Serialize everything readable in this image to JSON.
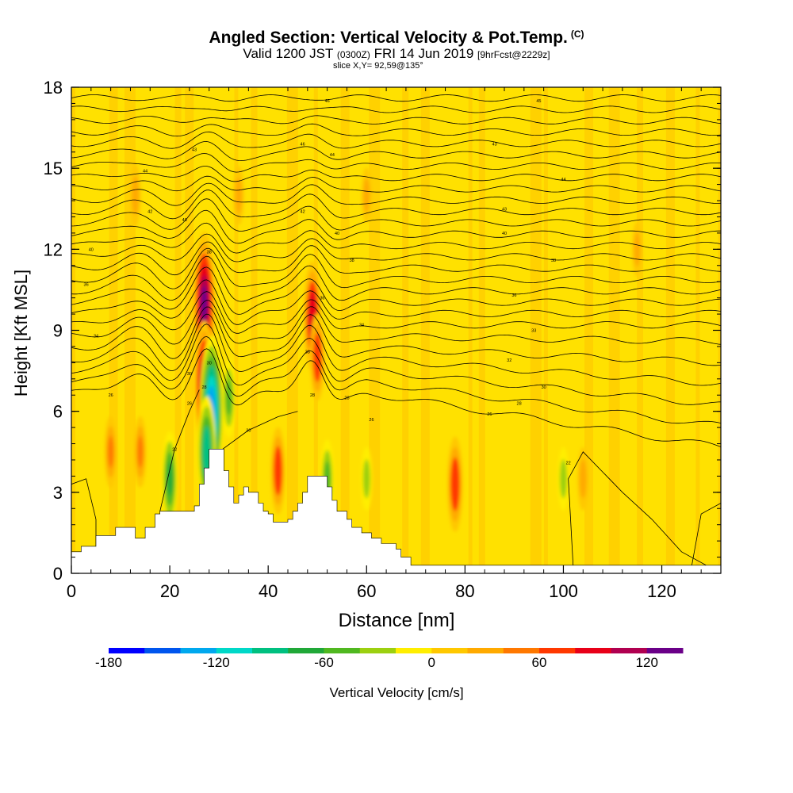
{
  "chart_data": {
    "type": "heatmap",
    "title": "Angled Section: Vertical Velocity & Pot.Temp.",
    "title_suffix": "(C)",
    "subtitle_main": "Valid 1200 JST",
    "subtitle_utc": "(0300Z)",
    "subtitle_date": "FRI 14 Jun 2019",
    "subtitle_fcst": "[9hrFcst@2229z]",
    "slice_label": "slice X,Y= 92,59@135°",
    "xlabel": "Distance [nm]",
    "ylabel": "Height [Kft MSL]",
    "xlim": [
      0,
      132
    ],
    "ylim": [
      0,
      18
    ],
    "x_ticks": [
      "0",
      "20",
      "40",
      "60",
      "80",
      "100",
      "120"
    ],
    "y_ticks": [
      "0",
      "3",
      "6",
      "9",
      "12",
      "15",
      "18"
    ],
    "colorbar": {
      "label": "Vertical Velocity [cm/s]",
      "tick_labels": [
        "-180",
        "-120",
        "-60",
        "0",
        "60",
        "120"
      ],
      "colors": [
        "#0000ff",
        "#0055ee",
        "#00a8ee",
        "#00d8c8",
        "#00c080",
        "#20a838",
        "#50b820",
        "#9cd010",
        "#ffee00",
        "#ffc800",
        "#ffaa00",
        "#ff7800",
        "#ff3800",
        "#e80018",
        "#b00050",
        "#6a0088"
      ]
    },
    "velocity_cores_cm_s": [
      {
        "x": 8,
        "y": 4.5,
        "value": 40
      },
      {
        "x": 14,
        "y": 4.5,
        "value": 40
      },
      {
        "x": 27,
        "y": 10,
        "value": 130
      },
      {
        "x": 27,
        "y": 7,
        "value": 110
      },
      {
        "x": 28.5,
        "y": 6,
        "value": -140
      },
      {
        "x": 27.5,
        "y": 4.5,
        "value": -90
      },
      {
        "x": 20,
        "y": 3.5,
        "value": -70
      },
      {
        "x": 32,
        "y": 6.5,
        "value": -50
      },
      {
        "x": 42,
        "y": 3.8,
        "value": 60
      },
      {
        "x": 49,
        "y": 9.5,
        "value": 90
      },
      {
        "x": 50,
        "y": 8,
        "value": 60
      },
      {
        "x": 52,
        "y": 3.5,
        "value": -50
      },
      {
        "x": 60,
        "y": 3.5,
        "value": -30
      },
      {
        "x": 78,
        "y": 3.3,
        "value": 70
      },
      {
        "x": 100,
        "y": 3.5,
        "value": -30
      },
      {
        "x": 104,
        "y": 3.5,
        "value": 30
      },
      {
        "x": 13,
        "y": 14,
        "value": 30
      },
      {
        "x": 34,
        "y": 14,
        "value": 25
      },
      {
        "x": 60,
        "y": 14,
        "value": 20
      },
      {
        "x": 115,
        "y": 12,
        "value": 20
      }
    ],
    "potential_temperature_contour_labels": [
      {
        "x": 15,
        "y": 14.9,
        "text": "44"
      },
      {
        "x": 25,
        "y": 15.7,
        "text": "43"
      },
      {
        "x": 52,
        "y": 17.5,
        "text": "46"
      },
      {
        "x": 47,
        "y": 15.9,
        "text": "46"
      },
      {
        "x": 53,
        "y": 15.5,
        "text": "44"
      },
      {
        "x": 86,
        "y": 15.9,
        "text": "43"
      },
      {
        "x": 95,
        "y": 17.5,
        "text": "45"
      },
      {
        "x": 100,
        "y": 14.6,
        "text": "44"
      },
      {
        "x": 16,
        "y": 13.4,
        "text": "42"
      },
      {
        "x": 23,
        "y": 13.1,
        "text": "40"
      },
      {
        "x": 47,
        "y": 13.4,
        "text": "42"
      },
      {
        "x": 88,
        "y": 13.5,
        "text": "43"
      },
      {
        "x": 54,
        "y": 12.6,
        "text": "40"
      },
      {
        "x": 88,
        "y": 12.6,
        "text": "40"
      },
      {
        "x": 4,
        "y": 12.0,
        "text": "40"
      },
      {
        "x": 28,
        "y": 11.9,
        "text": "38"
      },
      {
        "x": 57,
        "y": 11.6,
        "text": "38"
      },
      {
        "x": 98,
        "y": 11.6,
        "text": "38"
      },
      {
        "x": 3,
        "y": 10.7,
        "text": "36"
      },
      {
        "x": 51,
        "y": 10.2,
        "text": "36"
      },
      {
        "x": 90,
        "y": 10.3,
        "text": "36"
      },
      {
        "x": 5,
        "y": 8.8,
        "text": "34"
      },
      {
        "x": 59,
        "y": 9.2,
        "text": "34"
      },
      {
        "x": 94,
        "y": 9.0,
        "text": "33"
      },
      {
        "x": 48,
        "y": 8.2,
        "text": "33"
      },
      {
        "x": 28,
        "y": 7.8,
        "text": "30"
      },
      {
        "x": 89,
        "y": 7.9,
        "text": "32"
      },
      {
        "x": 24,
        "y": 7.4,
        "text": "30"
      },
      {
        "x": 27,
        "y": 6.9,
        "text": "28"
      },
      {
        "x": 8,
        "y": 6.6,
        "text": "26"
      },
      {
        "x": 96,
        "y": 6.9,
        "text": "30"
      },
      {
        "x": 49,
        "y": 6.6,
        "text": "28"
      },
      {
        "x": 56,
        "y": 6.5,
        "text": "28"
      },
      {
        "x": 24,
        "y": 6.3,
        "text": "26"
      },
      {
        "x": 91,
        "y": 6.3,
        "text": "28"
      },
      {
        "x": 85,
        "y": 5.9,
        "text": "26"
      },
      {
        "x": 61,
        "y": 5.7,
        "text": "26"
      },
      {
        "x": 36,
        "y": 5.3,
        "text": "30"
      },
      {
        "x": 21,
        "y": 4.6,
        "text": "22"
      },
      {
        "x": 101,
        "y": 4.1,
        "text": "22"
      }
    ]
  }
}
